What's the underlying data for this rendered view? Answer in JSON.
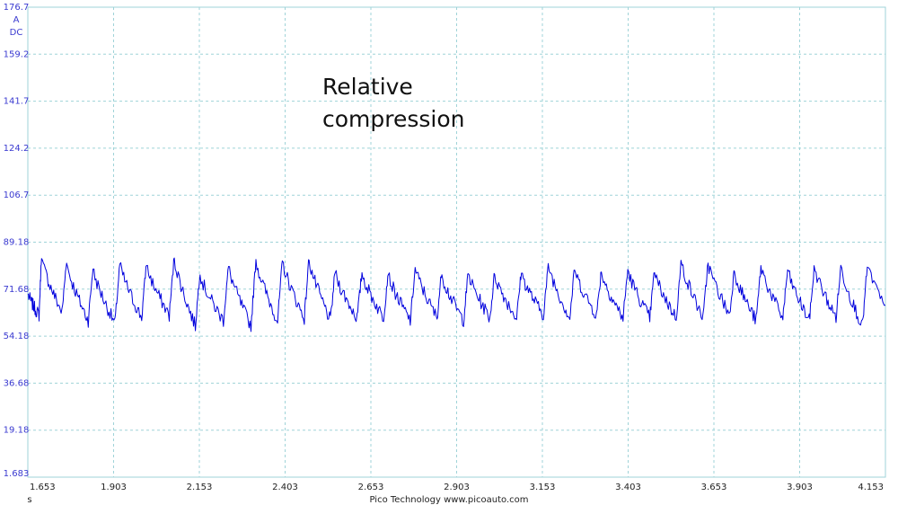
{
  "chart_data": {
    "type": "line",
    "title": "",
    "xlabel": "s",
    "ylabel": "A DC",
    "y_unit_lines": [
      "A",
      "DC"
    ],
    "xlim": [
      1.653,
      4.153
    ],
    "ylim": [
      1.683,
      176.7
    ],
    "x_ticks": [
      "1.653",
      "1.903",
      "2.153",
      "2.403",
      "2.653",
      "2.903",
      "3.153",
      "3.403",
      "3.653",
      "3.903",
      "4.153"
    ],
    "y_ticks": [
      "176.7",
      "159.2",
      "141.7",
      "124.2",
      "106.7",
      "89.18",
      "71.68",
      "54.18",
      "36.68",
      "19.18",
      "1.683"
    ],
    "grid": true,
    "line_color": "#0000dd",
    "series": [
      {
        "name": "",
        "peak_times": [
          1.693,
          1.766,
          1.843,
          1.921,
          1.999,
          2.08,
          2.155,
          2.238,
          2.318,
          2.395,
          2.473,
          2.549,
          2.627,
          2.704,
          2.782,
          2.86,
          2.937,
          3.014,
          3.092,
          3.17,
          3.247,
          3.325,
          3.402,
          3.48,
          3.557,
          3.636,
          3.713,
          3.79,
          3.868,
          3.945,
          4.023,
          4.1
        ],
        "peak_values": [
          85,
          83,
          80,
          81,
          82,
          84,
          79,
          80,
          83,
          82,
          84,
          79,
          78,
          79,
          79,
          79,
          78,
          78,
          79,
          80,
          80,
          79,
          79,
          79,
          81,
          82,
          80,
          80,
          79,
          79,
          80,
          80
        ],
        "trough_values": [
          62,
          63,
          60,
          59,
          61,
          62,
          58,
          60,
          58,
          60,
          61,
          60,
          61,
          61,
          60,
          61,
          60,
          61,
          61,
          62,
          61,
          62,
          61,
          61,
          61,
          61,
          62,
          60,
          61,
          60,
          61,
          58
        ],
        "start": {
          "x": 1.653,
          "y": 70
        },
        "end": {
          "x": 4.153,
          "y": 64
        }
      }
    ],
    "annotation": [
      "Relative",
      "compression"
    ]
  },
  "footer": "Pico Technology  www.picoauto.com"
}
